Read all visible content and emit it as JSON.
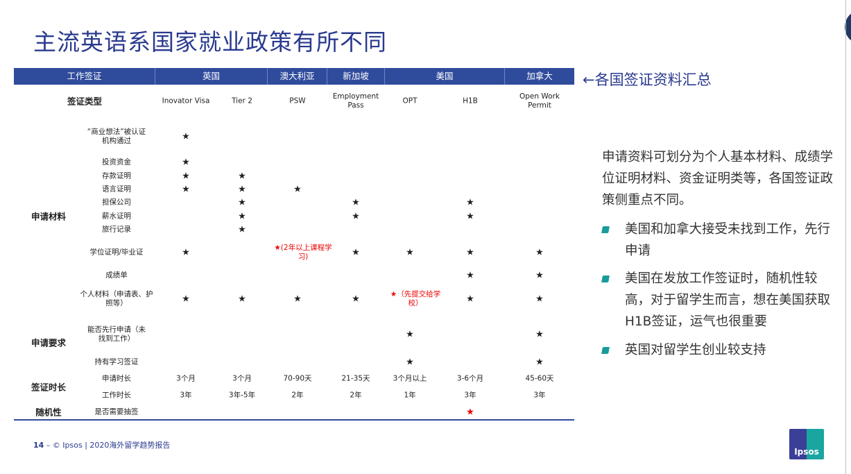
{
  "title": "主流英语系国家就业政策有所不同",
  "header": [
    "工作签证",
    "英国",
    "澳大利亚",
    "新加坡",
    "美国",
    "加拿大"
  ],
  "annotation": "←各国签证资料汇总",
  "visa_type_label": "签证类型",
  "visa_types": [
    "Inovator Visa",
    "Tier 2",
    "PSW",
    "Employment Pass",
    "OPT",
    "H1B",
    "Open Work Permit"
  ],
  "groups": [
    "申请材料",
    "申请要求",
    "签证时长",
    "随机性"
  ],
  "rows": [
    {
      "label": "“商业想法”被认证机构通过",
      "cells": [
        "★",
        "",
        "",
        "",
        "",
        "",
        ""
      ]
    },
    {
      "label": "投资资金",
      "cells": [
        "★",
        "",
        "",
        "",
        "",
        "",
        ""
      ]
    },
    {
      "label": "存款证明",
      "cells": [
        "★",
        "★",
        "",
        "",
        "",
        "",
        ""
      ]
    },
    {
      "label": "语言证明",
      "cells": [
        "★",
        "★",
        "★",
        "",
        "",
        "",
        ""
      ]
    },
    {
      "label": "担保公司",
      "cells": [
        "",
        "★",
        "",
        "★",
        "",
        "★",
        ""
      ]
    },
    {
      "label": "薪水证明",
      "cells": [
        "",
        "★",
        "",
        "★",
        "",
        "★",
        ""
      ]
    },
    {
      "label": "旅行记录",
      "cells": [
        "",
        "★",
        "",
        "",
        "",
        "",
        ""
      ]
    },
    {
      "label": "学位证明/毕业证",
      "cells": [
        "★",
        "",
        "★(2年以上课程学习)",
        "★",
        "★",
        "★",
        "★"
      ]
    },
    {
      "label": "成绩单",
      "cells": [
        "",
        "",
        "",
        "",
        "",
        "★",
        "★"
      ]
    },
    {
      "label": "个人材料（申请表、护照等）",
      "cells": [
        "★",
        "★",
        "★",
        "★",
        "★（先提交给学校）",
        "★",
        "★"
      ]
    },
    {
      "label": "能否先行申请（未找到工作）",
      "cells": [
        "",
        "",
        "",
        "",
        "★",
        "",
        "★"
      ]
    },
    {
      "label": "持有学习签证",
      "cells": [
        "",
        "",
        "",
        "",
        "★",
        "",
        "★"
      ]
    },
    {
      "label": "申请时长",
      "cells": [
        "3个月",
        "3个月",
        "70-90天",
        "21-35天",
        "3个月以上",
        "3-6个月",
        "45-60天"
      ]
    },
    {
      "label": "工作时长",
      "cells": [
        "3年",
        "3年-5年",
        "2年",
        "2年",
        "1年",
        "3年",
        "3年"
      ]
    },
    {
      "label": "是否需要抽签",
      "cells": [
        "",
        "",
        "",
        "",
        "",
        "★",
        ""
      ]
    }
  ],
  "side_text": "申请资料可划分为个人基本材料、成绩学位证明材料、资金证明类等，各国签证政策侧重点不同。",
  "bullets": [
    "美国和加拿大接受未找到工作，先行申请",
    "美国在发放工作签证时，随机性较高，对于留学生而言，想在美国获取H1B签证，运气也很重要",
    "英国对留学生创业较支持"
  ],
  "footer": {
    "page": "14",
    "sep": " – ",
    "text": "© Ipsos | 2020海外留学趋势报告"
  },
  "logo": "Ipsos",
  "colors": {
    "header": "#2f4b9c",
    "title": "#2a3a8f",
    "highlight": "#ee0000",
    "bullet": "#1a9b9b"
  }
}
